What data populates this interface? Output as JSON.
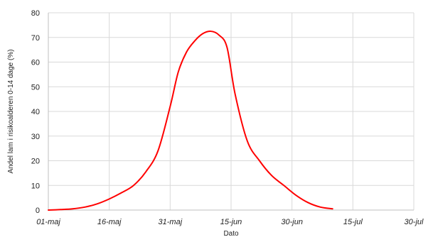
{
  "chart_data": {
    "type": "line",
    "title": "",
    "xlabel": "Dato",
    "ylabel": "Andel lam i risikoalderen 0-14 dage (%)",
    "grid": true,
    "legend": "none",
    "ylim": [
      0,
      80
    ],
    "yticks": [
      0,
      10,
      20,
      30,
      40,
      50,
      60,
      70,
      80
    ],
    "x_axis": {
      "type": "date",
      "ticks": [
        "01-maj",
        "16-maj",
        "31-maj",
        "15-jun",
        "30-jun",
        "15-jul",
        "30-jul"
      ],
      "range": [
        "01-maj",
        "30-jul"
      ]
    },
    "series": [
      {
        "name": "",
        "color": "#ff0000",
        "x": [
          "01-maj",
          "04-maj",
          "07-maj",
          "10-maj",
          "13-maj",
          "16-maj",
          "19-maj",
          "22-maj",
          "25-maj",
          "28-maj",
          "31-maj",
          "02-jun",
          "04-jun",
          "06-jun",
          "08-jun",
          "10-jun",
          "12-jun",
          "14-jun",
          "16-jun",
          "19-jun",
          "22-jun",
          "25-jun",
          "28-jun",
          "01-jul",
          "04-jul",
          "07-jul",
          "10-jul"
        ],
        "values": [
          0,
          0.2,
          0.5,
          1.2,
          2.5,
          4.5,
          7,
          10,
          15.5,
          24,
          42,
          56,
          64,
          68.5,
          71.5,
          72.5,
          71,
          66,
          47,
          28,
          20,
          14,
          10,
          6,
          3,
          1.2,
          0.5
        ]
      }
    ]
  }
}
